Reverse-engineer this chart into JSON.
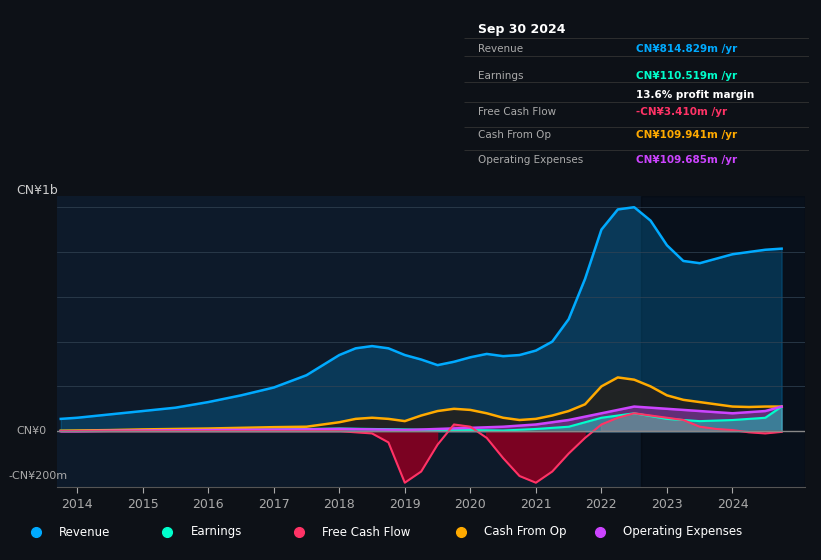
{
  "bg_color": "#0d1117",
  "plot_bg": "#0d1a2a",
  "title": "Sep 30 2024",
  "ylabel": "CN¥1b",
  "ylabel_neg": "-CN¥200m",
  "ylabel_zero": "CN¥0",
  "ylim": [
    -250,
    1050
  ],
  "xlim": [
    2013.7,
    2025.1
  ],
  "xticks": [
    2014,
    2015,
    2016,
    2017,
    2018,
    2019,
    2020,
    2021,
    2022,
    2023,
    2024
  ],
  "colors": {
    "revenue": "#00aaff",
    "earnings": "#00ffcc",
    "free_cash_flow": "#ff3366",
    "cash_from_op": "#ffaa00",
    "operating_expenses": "#cc44ff"
  },
  "revenue": {
    "x": [
      2013.75,
      2014.0,
      2014.5,
      2015.0,
      2015.5,
      2016.0,
      2016.5,
      2017.0,
      2017.5,
      2018.0,
      2018.25,
      2018.5,
      2018.75,
      2019.0,
      2019.25,
      2019.5,
      2019.75,
      2020.0,
      2020.25,
      2020.5,
      2020.75,
      2021.0,
      2021.25,
      2021.5,
      2021.75,
      2022.0,
      2022.25,
      2022.5,
      2022.75,
      2023.0,
      2023.25,
      2023.5,
      2023.75,
      2024.0,
      2024.25,
      2024.5,
      2024.75
    ],
    "y": [
      55,
      60,
      75,
      90,
      105,
      130,
      160,
      195,
      250,
      340,
      370,
      380,
      370,
      340,
      320,
      295,
      310,
      330,
      345,
      335,
      340,
      360,
      400,
      500,
      680,
      900,
      990,
      1000,
      940,
      830,
      760,
      750,
      770,
      790,
      800,
      810,
      815
    ]
  },
  "earnings": {
    "x": [
      2013.75,
      2014.0,
      2014.5,
      2015.0,
      2015.5,
      2016.0,
      2016.5,
      2017.0,
      2017.5,
      2018.0,
      2018.5,
      2019.0,
      2019.5,
      2020.0,
      2020.5,
      2021.0,
      2021.5,
      2022.0,
      2022.5,
      2023.0,
      2023.5,
      2024.0,
      2024.5,
      2024.75
    ],
    "y": [
      2,
      2,
      3,
      4,
      5,
      6,
      7,
      8,
      10,
      12,
      10,
      8,
      5,
      5,
      3,
      10,
      20,
      60,
      80,
      55,
      45,
      50,
      60,
      110
    ]
  },
  "free_cash_flow": {
    "x": [
      2013.75,
      2014.0,
      2014.5,
      2015.0,
      2015.5,
      2016.0,
      2016.5,
      2017.0,
      2017.5,
      2018.0,
      2018.25,
      2018.5,
      2018.75,
      2019.0,
      2019.25,
      2019.5,
      2019.75,
      2020.0,
      2020.25,
      2020.5,
      2020.75,
      2021.0,
      2021.25,
      2021.5,
      2021.75,
      2022.0,
      2022.25,
      2022.5,
      2022.75,
      2023.0,
      2023.25,
      2023.5,
      2023.75,
      2024.0,
      2024.25,
      2024.5,
      2024.75
    ],
    "y": [
      0,
      0,
      0,
      0,
      0,
      0,
      0,
      0,
      0,
      0,
      -5,
      -10,
      -50,
      -230,
      -180,
      -60,
      30,
      20,
      -30,
      -120,
      -200,
      -230,
      -180,
      -100,
      -30,
      30,
      60,
      80,
      70,
      60,
      50,
      20,
      10,
      5,
      -5,
      -10,
      -3
    ]
  },
  "cash_from_op": {
    "x": [
      2013.75,
      2014.0,
      2014.5,
      2015.0,
      2015.5,
      2016.0,
      2016.5,
      2017.0,
      2017.5,
      2018.0,
      2018.25,
      2018.5,
      2018.75,
      2019.0,
      2019.25,
      2019.5,
      2019.75,
      2020.0,
      2020.25,
      2020.5,
      2020.75,
      2021.0,
      2021.25,
      2021.5,
      2021.75,
      2022.0,
      2022.25,
      2022.5,
      2022.75,
      2023.0,
      2023.25,
      2023.5,
      2023.75,
      2024.0,
      2024.25,
      2024.5,
      2024.75
    ],
    "y": [
      2,
      3,
      5,
      8,
      10,
      12,
      15,
      18,
      20,
      40,
      55,
      60,
      55,
      45,
      70,
      90,
      100,
      95,
      80,
      60,
      50,
      55,
      70,
      90,
      120,
      200,
      240,
      230,
      200,
      160,
      140,
      130,
      120,
      110,
      108,
      110,
      110
    ]
  },
  "operating_expenses": {
    "x": [
      2013.75,
      2014.0,
      2014.5,
      2015.0,
      2015.5,
      2016.0,
      2016.5,
      2017.0,
      2017.5,
      2018.0,
      2018.5,
      2019.0,
      2019.5,
      2020.0,
      2020.5,
      2021.0,
      2021.5,
      2022.0,
      2022.5,
      2023.0,
      2023.5,
      2024.0,
      2024.5,
      2024.75
    ],
    "y": [
      0,
      0,
      2,
      3,
      4,
      5,
      6,
      7,
      8,
      10,
      8,
      5,
      10,
      15,
      20,
      30,
      50,
      80,
      110,
      100,
      90,
      80,
      90,
      110
    ]
  },
  "info_box": {
    "date": "Sep 30 2024",
    "revenue_val": "CN¥814.829m",
    "earnings_val": "CN¥110.519m",
    "profit_margin": "13.6%",
    "fcf_val": "-CN¥3.410m",
    "cash_from_op_val": "CN¥109.941m",
    "opex_val": "CN¥109.685m"
  },
  "legend": [
    {
      "label": "Revenue",
      "color": "#00aaff"
    },
    {
      "label": "Earnings",
      "color": "#00ffcc"
    },
    {
      "label": "Free Cash Flow",
      "color": "#ff3366"
    },
    {
      "label": "Cash From Op",
      "color": "#ffaa00"
    },
    {
      "label": "Operating Expenses",
      "color": "#cc44ff"
    }
  ]
}
